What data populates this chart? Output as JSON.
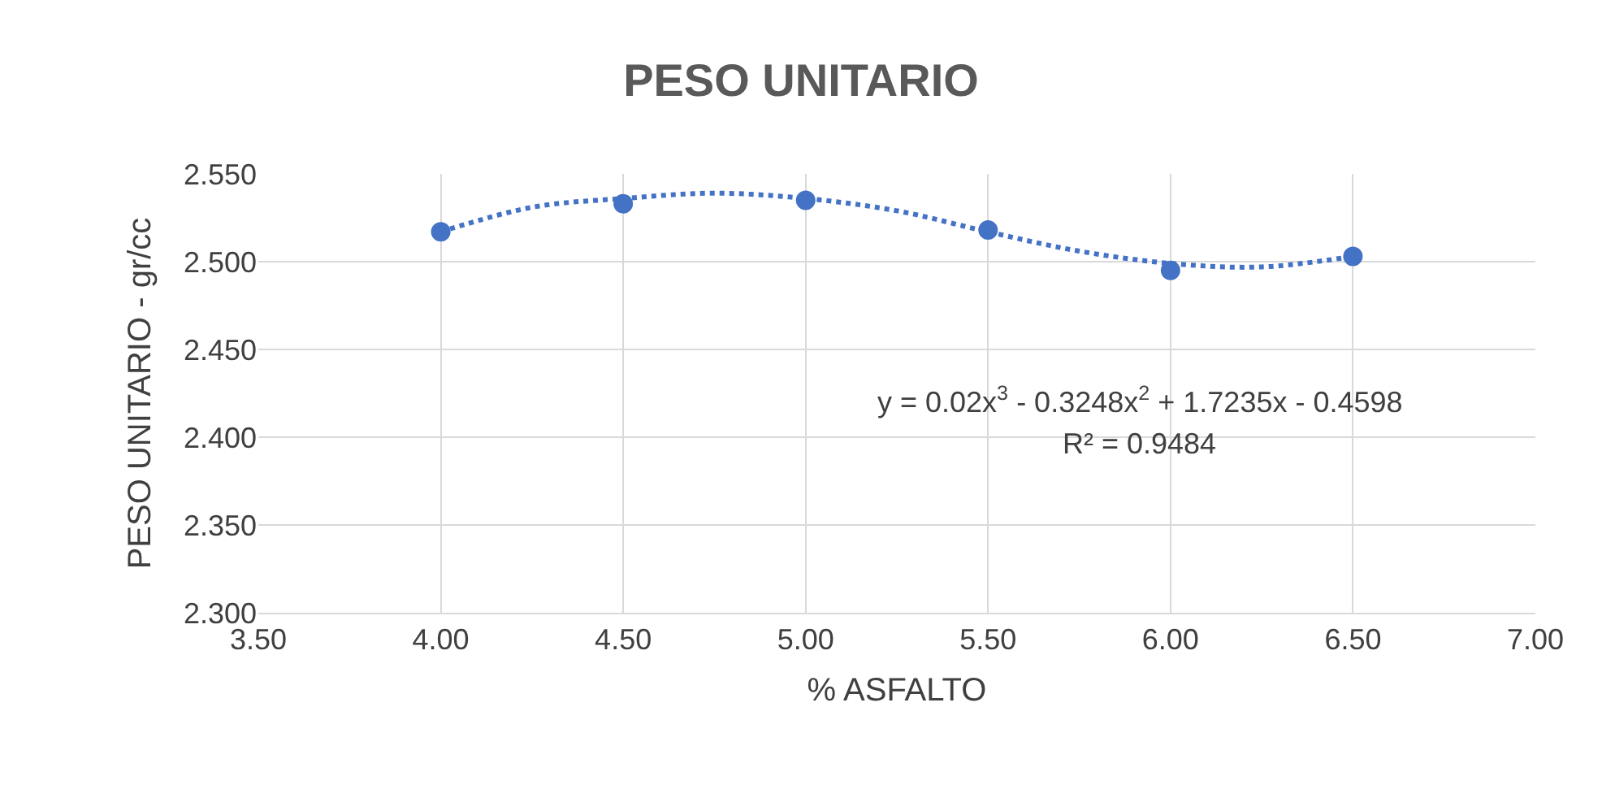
{
  "chart_data": {
    "type": "scatter",
    "title": "PESO UNITARIO",
    "xlabel": "% ASFALTO",
    "ylabel": "PESO UNITARIO - gr/cc",
    "x": [
      4.0,
      4.5,
      5.0,
      5.5,
      6.0,
      6.5
    ],
    "series": [
      {
        "type": "scatter",
        "color": "#4472c4",
        "marker": "circle",
        "values": [
          2.517,
          2.533,
          2.535,
          2.518,
          2.495,
          2.503
        ]
      },
      {
        "type": "line",
        "color": "#4472c4",
        "line_style": "dotted",
        "marker": "none",
        "x": [
          4.0,
          4.25,
          4.5,
          4.75,
          5.0,
          5.25,
          5.5,
          5.75,
          6.0,
          6.25,
          6.5
        ],
        "values": [
          2.517,
          2.531,
          2.536,
          2.539,
          2.536,
          2.529,
          2.517,
          2.506,
          2.499,
          2.497,
          2.503
        ]
      }
    ],
    "xlim": [
      3.5,
      7.0
    ],
    "xticks": [
      {
        "value": 3.5,
        "label": "3.50"
      },
      {
        "value": 4,
        "label": "4.00"
      },
      {
        "value": 4.5,
        "label": "4.50"
      },
      {
        "value": 5,
        "label": "5.00"
      },
      {
        "value": 5.5,
        "label": "5.50"
      },
      {
        "value": 6,
        "label": "6.00"
      },
      {
        "value": 6.5,
        "label": "6.50"
      },
      {
        "value": 7,
        "label": "7.00"
      }
    ],
    "ylim": [
      2.3,
      2.55
    ],
    "yticks": [
      {
        "value": 2.3,
        "label": "2.300"
      },
      {
        "value": 2.35,
        "label": "2.350"
      },
      {
        "value": 2.4,
        "label": "2.400"
      },
      {
        "value": 2.45,
        "label": "2.450"
      },
      {
        "value": 2.5,
        "label": "2.500"
      },
      {
        "value": 2.55,
        "label": "2.550"
      }
    ],
    "grid": true,
    "annotations": [
      "y = 0.02x$^{3}$ - 0.3248x$^{2}$ + 1.7235x - 0.4598",
      "R² = 0.9484"
    ]
  }
}
